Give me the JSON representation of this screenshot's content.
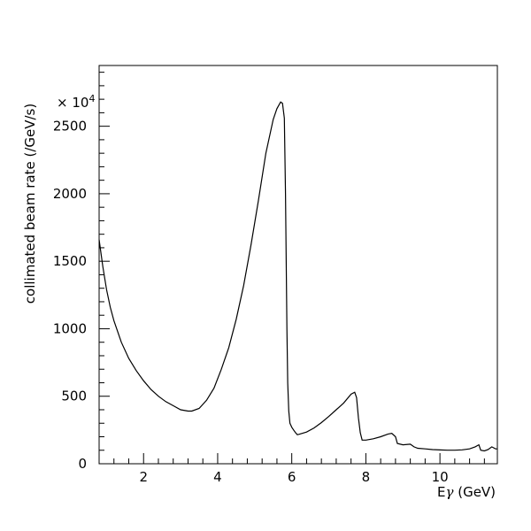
{
  "chart_data": {
    "type": "line",
    "title": "",
    "xlabel": "Eγ (GeV)",
    "xlabel_parts": {
      "prefix": "E",
      "greek": "γ",
      "unit": " (GeV)"
    },
    "ylabel": "collimated beam rate (/GeV/s)",
    "y_multiplier": {
      "base": "× 10",
      "exponent": "4"
    },
    "xlim": [
      0.8,
      11.55
    ],
    "ylim": [
      0,
      2950
    ],
    "x_ticks": [
      2,
      4,
      6,
      8,
      10
    ],
    "x_tick_labels": [
      "2",
      "4",
      "6",
      "8",
      "10"
    ],
    "y_ticks": [
      0,
      500,
      1000,
      1500,
      2000,
      2500
    ],
    "y_tick_labels": [
      "0",
      "500",
      "1000",
      "1500",
      "2000",
      "2500"
    ],
    "grid": false,
    "legend": "none",
    "line_color": "#000000",
    "series": [
      {
        "x": [
          0.8,
          0.9,
          1.0,
          1.1,
          1.2,
          1.4,
          1.6,
          1.8,
          2.0,
          2.2,
          2.4,
          2.6,
          2.8,
          3.0,
          3.2,
          3.3,
          3.5,
          3.7,
          3.9,
          4.1,
          4.3,
          4.5,
          4.7,
          4.9,
          5.1,
          5.3,
          5.5,
          5.6,
          5.7,
          5.75,
          5.8,
          5.83,
          5.85,
          5.87,
          5.89,
          5.92,
          5.95,
          6.0,
          6.05,
          6.1,
          6.15,
          6.2,
          6.4,
          6.6,
          6.8,
          7.0,
          7.2,
          7.4,
          7.6,
          7.7,
          7.75,
          7.8,
          7.85,
          7.9,
          8.0,
          8.2,
          8.4,
          8.6,
          8.7,
          8.8,
          8.85,
          9.0,
          9.2,
          9.3,
          9.4,
          9.6,
          9.8,
          10.0,
          10.2,
          10.4,
          10.6,
          10.8,
          10.95,
          11.05,
          11.1,
          11.2,
          11.3,
          11.4,
          11.5,
          11.55
        ],
        "y": [
          1660,
          1460,
          1290,
          1160,
          1060,
          900,
          780,
          690,
          615,
          550,
          500,
          460,
          430,
          400,
          390,
          390,
          410,
          470,
          560,
          700,
          860,
          1070,
          1320,
          1620,
          1950,
          2300,
          2550,
          2630,
          2680,
          2670,
          2560,
          2000,
          1500,
          1000,
          600,
          390,
          300,
          270,
          250,
          230,
          215,
          218,
          235,
          265,
          305,
          350,
          400,
          450,
          515,
          530,
          490,
          340,
          230,
          175,
          175,
          185,
          200,
          220,
          225,
          200,
          150,
          140,
          145,
          125,
          115,
          110,
          105,
          102,
          100,
          100,
          103,
          110,
          125,
          140,
          100,
          95,
          105,
          125,
          110,
          110
        ]
      }
    ]
  }
}
